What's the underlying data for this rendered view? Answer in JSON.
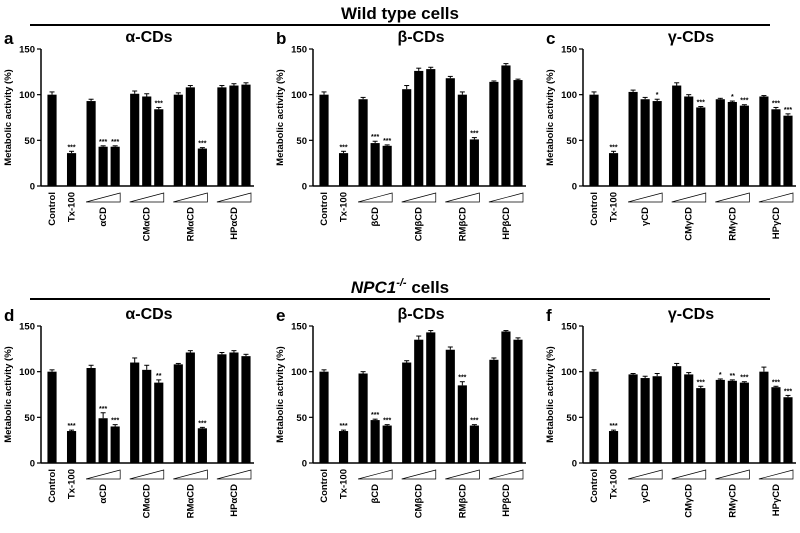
{
  "sections": [
    {
      "title": "Wild type cells"
    },
    {
      "title": "NPC1",
      "superscript": "-/-",
      "suffix": " cells"
    }
  ],
  "chart_data": [
    {
      "type": "bar",
      "letter": "a",
      "title": "α-CDs",
      "ylabel": "Metabolic activity (%)",
      "ylim": [
        0,
        150
      ],
      "yticks": [
        0,
        50,
        100,
        150
      ],
      "values": [
        100,
        36,
        93,
        43,
        43,
        101,
        98,
        84,
        100,
        108,
        41,
        108,
        110,
        111
      ],
      "errors": [
        3,
        2,
        2,
        1,
        1,
        3,
        3,
        2,
        2,
        2,
        1,
        2,
        2,
        2
      ],
      "significance": [
        "",
        "***",
        "",
        "***",
        "***",
        "",
        "",
        "***",
        "",
        "",
        "***",
        "",
        "",
        ""
      ],
      "groups": [
        {
          "label": "Control",
          "kind": "single"
        },
        {
          "label": "Tx-100",
          "kind": "single"
        },
        {
          "label": "αCD",
          "kind": "triple"
        },
        {
          "label": "CMαCD",
          "kind": "triple"
        },
        {
          "label": "RMαCD",
          "kind": "triple"
        },
        {
          "label": "HPαCD",
          "kind": "triple"
        }
      ]
    },
    {
      "type": "bar",
      "letter": "b",
      "title": "β-CDs",
      "ylabel": "Metabolic activity (%)",
      "ylim": [
        0,
        150
      ],
      "yticks": [
        0,
        50,
        100,
        150
      ],
      "values": [
        100,
        36,
        95,
        47,
        44,
        106,
        126,
        128,
        118,
        100,
        51,
        114,
        132,
        116
      ],
      "errors": [
        3,
        2,
        2,
        2,
        1,
        4,
        3,
        2,
        2,
        3,
        2,
        1,
        2,
        1
      ],
      "significance": [
        "",
        "***",
        "",
        "***",
        "***",
        "",
        "",
        "",
        "",
        "",
        "***",
        "",
        "",
        ""
      ],
      "groups": [
        {
          "label": "Control",
          "kind": "single"
        },
        {
          "label": "Tx-100",
          "kind": "single"
        },
        {
          "label": "βCD",
          "kind": "triple"
        },
        {
          "label": "CMβCD",
          "kind": "triple"
        },
        {
          "label": "RMβCD",
          "kind": "triple"
        },
        {
          "label": "HPβCD",
          "kind": "triple"
        }
      ]
    },
    {
      "type": "bar",
      "letter": "c",
      "title": "γ-CDs",
      "ylabel": "Metabolic activity (%)",
      "ylim": [
        0,
        150
      ],
      "yticks": [
        0,
        50,
        100,
        150
      ],
      "values": [
        100,
        36,
        103,
        95,
        93,
        110,
        98,
        86,
        95,
        92,
        88,
        98,
        84,
        77
      ],
      "errors": [
        3,
        2,
        2,
        2,
        2,
        3,
        2,
        1,
        1,
        1,
        1,
        1,
        2,
        2
      ],
      "significance": [
        "",
        "***",
        "",
        "",
        "*",
        "",
        "",
        "***",
        "",
        "*",
        "***",
        "",
        "***",
        "***"
      ],
      "groups": [
        {
          "label": "Control",
          "kind": "single"
        },
        {
          "label": "Tx-100",
          "kind": "single"
        },
        {
          "label": "γCD",
          "kind": "triple"
        },
        {
          "label": "CMγCD",
          "kind": "triple"
        },
        {
          "label": "RMγCD",
          "kind": "triple"
        },
        {
          "label": "HPγCD",
          "kind": "triple"
        }
      ]
    },
    {
      "type": "bar",
      "letter": "d",
      "title": "α-CDs",
      "ylabel": "Metabolic activity (%)",
      "ylim": [
        0,
        150
      ],
      "yticks": [
        0,
        50,
        100,
        150
      ],
      "values": [
        100,
        35,
        104,
        49,
        40,
        110,
        102,
        88,
        108,
        121,
        38,
        119,
        121,
        117
      ],
      "errors": [
        2,
        1,
        3,
        6,
        2,
        5,
        5,
        3,
        1,
        2,
        1,
        2,
        2,
        2
      ],
      "significance": [
        "",
        "***",
        "",
        "***",
        "***",
        "",
        "",
        "**",
        "",
        "",
        "***",
        "",
        "",
        ""
      ],
      "groups": [
        {
          "label": "Control",
          "kind": "single"
        },
        {
          "label": "Tx-100",
          "kind": "single"
        },
        {
          "label": "αCD",
          "kind": "triple"
        },
        {
          "label": "CMαCD",
          "kind": "triple"
        },
        {
          "label": "RMαCD",
          "kind": "triple"
        },
        {
          "label": "HPαCD",
          "kind": "triple"
        }
      ]
    },
    {
      "type": "bar",
      "letter": "e",
      "title": "β-CDs",
      "ylabel": "Metabolic activity (%)",
      "ylim": [
        0,
        150
      ],
      "yticks": [
        0,
        50,
        100,
        150
      ],
      "values": [
        100,
        35,
        98,
        47,
        41,
        110,
        135,
        143,
        124,
        85,
        41,
        113,
        144,
        135
      ],
      "errors": [
        2,
        1,
        2,
        1,
        1,
        2,
        4,
        2,
        3,
        4,
        1,
        2,
        1,
        2
      ],
      "significance": [
        "",
        "***",
        "",
        "***",
        "***",
        "",
        "",
        "",
        "",
        "***",
        "***",
        "",
        "",
        ""
      ],
      "groups": [
        {
          "label": "Control",
          "kind": "single"
        },
        {
          "label": "Tx-100",
          "kind": "single"
        },
        {
          "label": "βCD",
          "kind": "triple"
        },
        {
          "label": "CMβCD",
          "kind": "triple"
        },
        {
          "label": "RMβCD",
          "kind": "triple"
        },
        {
          "label": "HPβCD",
          "kind": "triple"
        }
      ]
    },
    {
      "type": "bar",
      "letter": "f",
      "title": "γ-CDs",
      "ylabel": "Metabolic activity (%)",
      "ylim": [
        0,
        150
      ],
      "yticks": [
        0,
        50,
        100,
        150
      ],
      "values": [
        100,
        35,
        97,
        93,
        95,
        106,
        97,
        82,
        91,
        90,
        88,
        100,
        83,
        72
      ],
      "errors": [
        2,
        1,
        1,
        2,
        3,
        3,
        2,
        2,
        1,
        1,
        1,
        5,
        1,
        2
      ],
      "significance": [
        "",
        "***",
        "",
        "",
        "",
        "",
        "",
        "***",
        "*",
        "**",
        "***",
        "",
        "***",
        "***"
      ],
      "groups": [
        {
          "label": "Control",
          "kind": "single"
        },
        {
          "label": "Tx-100",
          "kind": "single"
        },
        {
          "label": "γCD",
          "kind": "triple"
        },
        {
          "label": "CMγCD",
          "kind": "triple"
        },
        {
          "label": "RMγCD",
          "kind": "triple"
        },
        {
          "label": "HPγCD",
          "kind": "triple"
        }
      ]
    }
  ]
}
